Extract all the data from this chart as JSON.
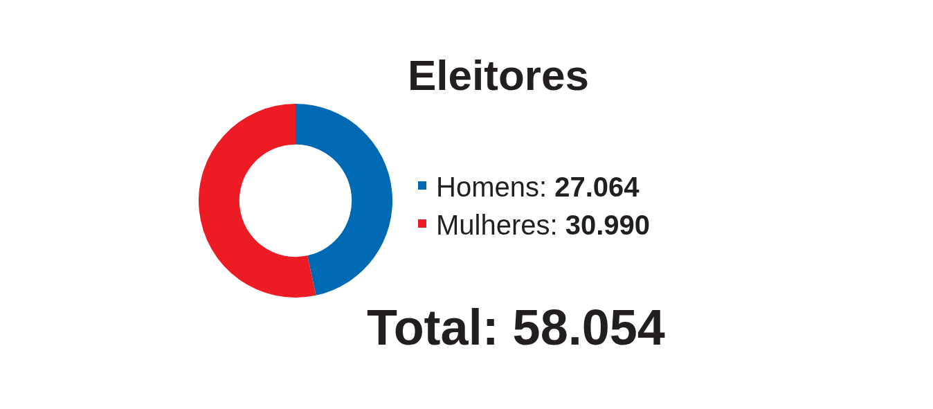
{
  "chart_data": {
    "type": "donut",
    "title": "Eleitores",
    "categories": [
      "Homens: 27.064",
      "Mulheres: 30.990"
    ],
    "values": [
      27064,
      30990
    ],
    "colors": [
      "#0069b4",
      "#ed1c24"
    ],
    "legend": "right",
    "annotations": [
      "Total: 58.054"
    ]
  }
}
